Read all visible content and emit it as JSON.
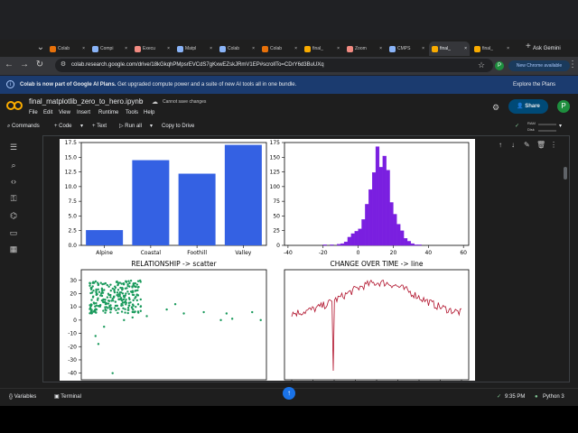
{
  "browser": {
    "tabs": [
      {
        "label": "Colab",
        "color": "#e8710a"
      },
      {
        "label": "Compi",
        "color": "#8ab4f8"
      },
      {
        "label": "Execu",
        "color": "#f28b82"
      },
      {
        "label": "Matpl",
        "color": "#8ab4f8"
      },
      {
        "label": "Colab",
        "color": "#8ab4f8"
      },
      {
        "label": "Colab",
        "color": "#e8710a"
      },
      {
        "label": "final_",
        "color": "#f9ab00"
      },
      {
        "label": "Zoom",
        "color": "#f28b82"
      },
      {
        "label": "CMPS",
        "color": "#8ab4f8"
      },
      {
        "label": "final_",
        "color": "#f9ab00"
      },
      {
        "label": "final_",
        "color": "#f9ab00"
      }
    ],
    "new_tab": "+",
    "ask_gemini": "Ask Gemini",
    "url": "colab.research.google.com/drive/18kGkqhPMpsrEVCdS7gKxwEZskJRmV1EP#scrollTo=CDrY6d3BuUXq",
    "new_chrome_label": "New Chrome available",
    "profile_initial": "P"
  },
  "banner": {
    "bold": "Colab is now part of Google AI Plans.",
    "text": "Get upgraded compute power and a suite of new AI tools all in one bundle.",
    "link": "Explore the Plans"
  },
  "colab": {
    "notebook_name": "final_matplotlib_zero_to_hero.ipynb",
    "save_status": "Cannot save changes",
    "menu": [
      "File",
      "Edit",
      "View",
      "Insert",
      "Runtime",
      "Tools",
      "Help"
    ],
    "share_label": "Share",
    "profile_initial": "P",
    "commands_label": "Commands",
    "code_label": "+ Code",
    "text_label": "+ Text",
    "run_all_label": "Run all",
    "copy_drive_label": "Copy to Drive",
    "ram_label": "RAM",
    "disk_label": "Disk"
  },
  "status": {
    "variables": "Variables",
    "terminal": "Terminal",
    "time": "9:35 PM",
    "runtime": "Python 3"
  },
  "chart_data": [
    {
      "type": "bar",
      "categories": [
        "Alpine",
        "Coastal",
        "Foothill",
        "Valley"
      ],
      "values": [
        2.6,
        14.5,
        12.2,
        17.1
      ],
      "ylim": [
        0,
        17.5
      ],
      "yticks": [
        0.0,
        2.5,
        5.0,
        7.5,
        10.0,
        12.5,
        15.0,
        17.5
      ],
      "title": "",
      "color": "#3461e3"
    },
    {
      "type": "bar",
      "subtype": "histogram",
      "bin_edges": [
        -20,
        -18,
        -16,
        -14,
        -12,
        -10,
        -8,
        -6,
        -4,
        -2,
        0,
        2,
        4,
        6,
        8,
        10,
        12,
        14,
        16,
        18,
        20,
        22,
        24,
        26,
        28,
        30,
        32,
        34,
        36
      ],
      "counts": [
        1,
        0,
        1,
        0,
        2,
        3,
        6,
        14,
        20,
        24,
        28,
        44,
        70,
        95,
        124,
        168,
        133,
        152,
        128,
        73,
        53,
        36,
        25,
        12,
        7,
        3,
        1,
        1
      ],
      "xlim": [
        -42,
        63
      ],
      "ylim": [
        0,
        175
      ],
      "xticks": [
        -40,
        -20,
        0,
        20,
        40,
        60
      ],
      "yticks": [
        0,
        25,
        50,
        75,
        100,
        125,
        150,
        175
      ],
      "title": "",
      "color": "#7a1fe0"
    },
    {
      "type": "scatter",
      "title": "RELATIONSHIP -> scatter",
      "ylim": [
        -45,
        38
      ],
      "yticks": [
        -40,
        -30,
        -20,
        -10,
        0,
        10,
        20,
        30
      ],
      "color": "#1a9a5c",
      "cluster": {
        "x_range": [
          0,
          18
        ],
        "y_range": [
          5,
          30
        ],
        "count": 260
      },
      "points": [
        [
          8,
          -40
        ],
        [
          30,
          12
        ],
        [
          27,
          8
        ],
        [
          20,
          3
        ],
        [
          33,
          5
        ],
        [
          40,
          6
        ],
        [
          46,
          0
        ],
        [
          48,
          5
        ],
        [
          50,
          1
        ],
        [
          57,
          6
        ],
        [
          2,
          -12
        ],
        [
          5,
          -5
        ],
        [
          3,
          -18
        ],
        [
          12,
          0
        ],
        [
          15,
          2
        ],
        [
          60,
          0
        ]
      ],
      "xlim": [
        -3,
        62
      ]
    },
    {
      "type": "line",
      "title": "CHANGE OVER TIME -> line",
      "color": "#b0102a",
      "ylim": [
        -45,
        40
      ],
      "n_points": 140,
      "shape": "rises from about 5 to a peak near 30 in the middle then falls to about 5",
      "spike": {
        "index": 34,
        "value": -38
      }
    }
  ]
}
